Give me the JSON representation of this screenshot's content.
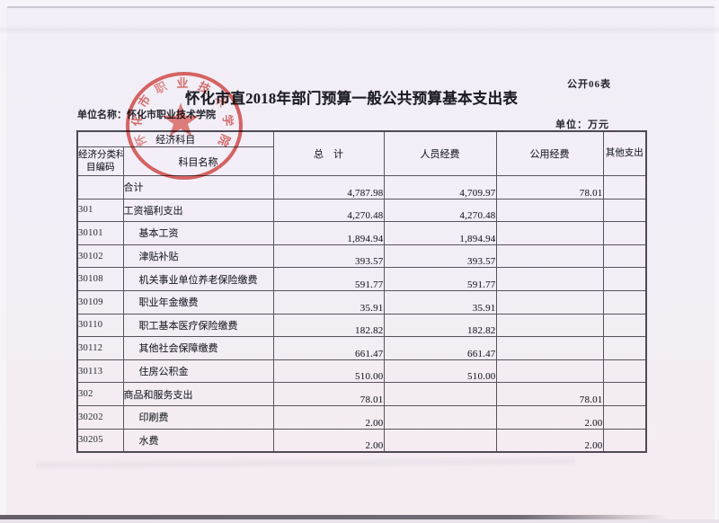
{
  "page": {
    "form_number": "公开06表",
    "title": "怀化市直2018年部门预算一般公共预算基本支出表",
    "unit_name_label": "单位名称：",
    "unit_name_value": "怀化市职业技术学院",
    "unit_label": "单位：万元"
  },
  "stamp": {
    "text": "怀化市职业技术学院",
    "color": "#d33028"
  },
  "table": {
    "header": {
      "economic_subject": "经济科目",
      "code_label_line1": "经济分类科",
      "code_label_line2": "目编码",
      "name_label": "科目名称",
      "total_label": "总　计",
      "personnel_label": "人员经费",
      "public_label": "公用经费",
      "other_label": "其他支出"
    },
    "rows": [
      {
        "code": "",
        "name": "合计",
        "indent": 0,
        "total": "4,787.98",
        "personnel": "4,709.97",
        "public": "78.01",
        "other": ""
      },
      {
        "code": "301",
        "name": "工资福利支出",
        "indent": 0,
        "total": "4,270.48",
        "personnel": "4,270.48",
        "public": "",
        "other": ""
      },
      {
        "code": "30101",
        "name": "基本工资",
        "indent": 1,
        "total": "1,894.94",
        "personnel": "1,894.94",
        "public": "",
        "other": ""
      },
      {
        "code": "30102",
        "name": "津贴补贴",
        "indent": 1,
        "total": "393.57",
        "personnel": "393.57",
        "public": "",
        "other": ""
      },
      {
        "code": "30108",
        "name": "机关事业单位养老保险缴费",
        "indent": 1,
        "total": "591.77",
        "personnel": "591.77",
        "public": "",
        "other": ""
      },
      {
        "code": "30109",
        "name": "职业年金缴费",
        "indent": 1,
        "total": "35.91",
        "personnel": "35.91",
        "public": "",
        "other": ""
      },
      {
        "code": "30110",
        "name": "职工基本医疗保险缴费",
        "indent": 1,
        "total": "182.82",
        "personnel": "182.82",
        "public": "",
        "other": ""
      },
      {
        "code": "30112",
        "name": "其他社会保障缴费",
        "indent": 1,
        "total": "661.47",
        "personnel": "661.47",
        "public": "",
        "other": ""
      },
      {
        "code": "30113",
        "name": "住房公积金",
        "indent": 1,
        "total": "510.00",
        "personnel": "510.00",
        "public": "",
        "other": ""
      },
      {
        "code": "302",
        "name": "商品和服务支出",
        "indent": 0,
        "total": "78.01",
        "personnel": "",
        "public": "78.01",
        "other": ""
      },
      {
        "code": "30202",
        "name": "印刷费",
        "indent": 1,
        "total": "2.00",
        "personnel": "",
        "public": "2.00",
        "other": ""
      },
      {
        "code": "30205",
        "name": "水费",
        "indent": 1,
        "total": "2.00",
        "personnel": "",
        "public": "2.00",
        "other": ""
      }
    ]
  }
}
